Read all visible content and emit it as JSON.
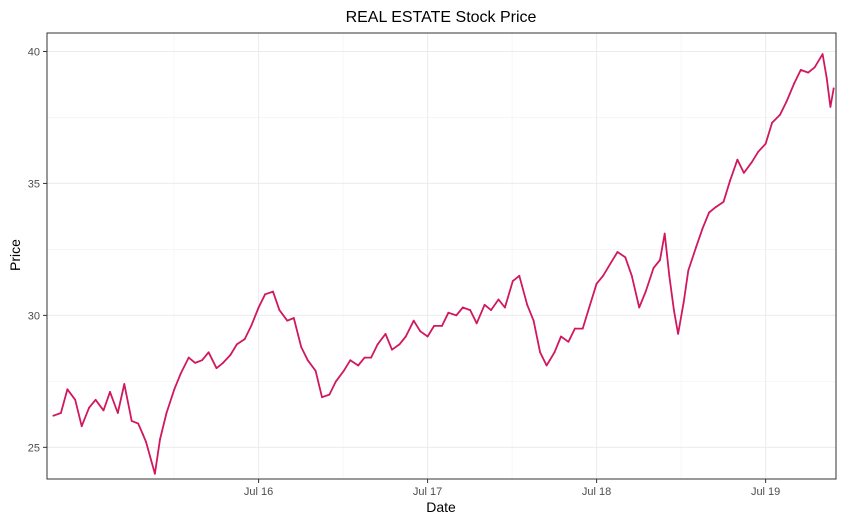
{
  "chart_data": {
    "type": "line",
    "title": "REAL ESTATE Stock Price",
    "xlabel": "Date",
    "ylabel": "Price",
    "x_range": [
      "2015-04-01",
      "2019-11-30"
    ],
    "ylim": [
      23.8,
      40.7
    ],
    "y_ticks": [
      25,
      30,
      35,
      40
    ],
    "x_ticks": [
      {
        "date": "2016-07-01",
        "label": "Jul 16"
      },
      {
        "date": "2017-07-01",
        "label": "Jul 17"
      },
      {
        "date": "2018-07-01",
        "label": "Jul 18"
      },
      {
        "date": "2019-07-01",
        "label": "Jul 19"
      }
    ],
    "grid": true,
    "series": [
      {
        "color": "#d1185f",
        "points": [
          [
            "2015-04-15",
            26.2
          ],
          [
            "2015-05-01",
            26.3
          ],
          [
            "2015-05-15",
            27.2
          ],
          [
            "2015-06-01",
            26.8
          ],
          [
            "2015-06-15",
            25.8
          ],
          [
            "2015-07-01",
            26.5
          ],
          [
            "2015-07-15",
            26.8
          ],
          [
            "2015-08-01",
            26.4
          ],
          [
            "2015-08-15",
            27.1
          ],
          [
            "2015-09-01",
            26.3
          ],
          [
            "2015-09-15",
            27.4
          ],
          [
            "2015-10-01",
            26.0
          ],
          [
            "2015-10-15",
            25.9
          ],
          [
            "2015-10-25",
            25.5
          ],
          [
            "2015-11-01",
            25.2
          ],
          [
            "2015-11-12",
            24.5
          ],
          [
            "2015-11-20",
            24.0
          ],
          [
            "2015-12-01",
            25.3
          ],
          [
            "2015-12-15",
            26.3
          ],
          [
            "2016-01-01",
            27.2
          ],
          [
            "2016-01-15",
            27.8
          ],
          [
            "2016-02-01",
            28.4
          ],
          [
            "2016-02-15",
            28.2
          ],
          [
            "2016-03-01",
            28.3
          ],
          [
            "2016-03-15",
            28.6
          ],
          [
            "2016-04-01",
            28.0
          ],
          [
            "2016-04-15",
            28.2
          ],
          [
            "2016-05-01",
            28.5
          ],
          [
            "2016-05-15",
            28.9
          ],
          [
            "2016-06-01",
            29.1
          ],
          [
            "2016-06-15",
            29.6
          ],
          [
            "2016-07-01",
            30.3
          ],
          [
            "2016-07-15",
            30.8
          ],
          [
            "2016-08-01",
            30.9
          ],
          [
            "2016-08-15",
            30.2
          ],
          [
            "2016-09-01",
            29.8
          ],
          [
            "2016-09-15",
            29.9
          ],
          [
            "2016-10-01",
            28.8
          ],
          [
            "2016-10-15",
            28.3
          ],
          [
            "2016-11-01",
            27.9
          ],
          [
            "2016-11-15",
            26.9
          ],
          [
            "2016-12-01",
            27.0
          ],
          [
            "2016-12-15",
            27.5
          ],
          [
            "2017-01-01",
            27.9
          ],
          [
            "2017-01-15",
            28.3
          ],
          [
            "2017-02-01",
            28.1
          ],
          [
            "2017-02-15",
            28.4
          ],
          [
            "2017-03-01",
            28.4
          ],
          [
            "2017-03-15",
            28.9
          ],
          [
            "2017-04-01",
            29.3
          ],
          [
            "2017-04-15",
            28.7
          ],
          [
            "2017-05-01",
            28.9
          ],
          [
            "2017-05-15",
            29.2
          ],
          [
            "2017-06-01",
            29.8
          ],
          [
            "2017-06-15",
            29.4
          ],
          [
            "2017-07-01",
            29.2
          ],
          [
            "2017-07-15",
            29.6
          ],
          [
            "2017-08-01",
            29.6
          ],
          [
            "2017-08-15",
            30.1
          ],
          [
            "2017-09-01",
            30.0
          ],
          [
            "2017-09-15",
            30.3
          ],
          [
            "2017-10-01",
            30.2
          ],
          [
            "2017-10-15",
            29.7
          ],
          [
            "2017-11-01",
            30.4
          ],
          [
            "2017-11-15",
            30.2
          ],
          [
            "2017-12-01",
            30.6
          ],
          [
            "2017-12-15",
            30.3
          ],
          [
            "2018-01-01",
            31.3
          ],
          [
            "2018-01-15",
            31.5
          ],
          [
            "2018-02-01",
            30.4
          ],
          [
            "2018-02-15",
            29.8
          ],
          [
            "2018-03-01",
            28.6
          ],
          [
            "2018-03-15",
            28.1
          ],
          [
            "2018-04-01",
            28.6
          ],
          [
            "2018-04-15",
            29.2
          ],
          [
            "2018-05-01",
            29.0
          ],
          [
            "2018-05-15",
            29.5
          ],
          [
            "2018-06-01",
            29.5
          ],
          [
            "2018-06-15",
            30.3
          ],
          [
            "2018-07-01",
            31.2
          ],
          [
            "2018-07-15",
            31.5
          ],
          [
            "2018-08-01",
            32.0
          ],
          [
            "2018-08-15",
            32.4
          ],
          [
            "2018-09-01",
            32.2
          ],
          [
            "2018-09-15",
            31.5
          ],
          [
            "2018-10-01",
            30.3
          ],
          [
            "2018-10-15",
            30.9
          ],
          [
            "2018-11-01",
            31.8
          ],
          [
            "2018-11-15",
            32.1
          ],
          [
            "2018-11-25",
            33.1
          ],
          [
            "2018-12-05",
            31.5
          ],
          [
            "2018-12-15",
            30.2
          ],
          [
            "2018-12-24",
            29.3
          ],
          [
            "2019-01-05",
            30.5
          ],
          [
            "2019-01-15",
            31.7
          ],
          [
            "2019-02-01",
            32.6
          ],
          [
            "2019-02-15",
            33.3
          ],
          [
            "2019-03-01",
            33.9
          ],
          [
            "2019-03-15",
            34.1
          ],
          [
            "2019-04-01",
            34.3
          ],
          [
            "2019-04-15",
            35.1
          ],
          [
            "2019-05-01",
            35.9
          ],
          [
            "2019-05-15",
            35.4
          ],
          [
            "2019-06-01",
            35.8
          ],
          [
            "2019-06-15",
            36.2
          ],
          [
            "2019-07-01",
            36.5
          ],
          [
            "2019-07-15",
            37.3
          ],
          [
            "2019-08-01",
            37.6
          ],
          [
            "2019-08-15",
            38.1
          ],
          [
            "2019-09-01",
            38.8
          ],
          [
            "2019-09-15",
            39.3
          ],
          [
            "2019-10-01",
            39.2
          ],
          [
            "2019-10-15",
            39.4
          ],
          [
            "2019-11-01",
            39.9
          ],
          [
            "2019-11-10",
            39.0
          ],
          [
            "2019-11-18",
            37.9
          ],
          [
            "2019-11-25",
            38.6
          ]
        ]
      }
    ]
  }
}
